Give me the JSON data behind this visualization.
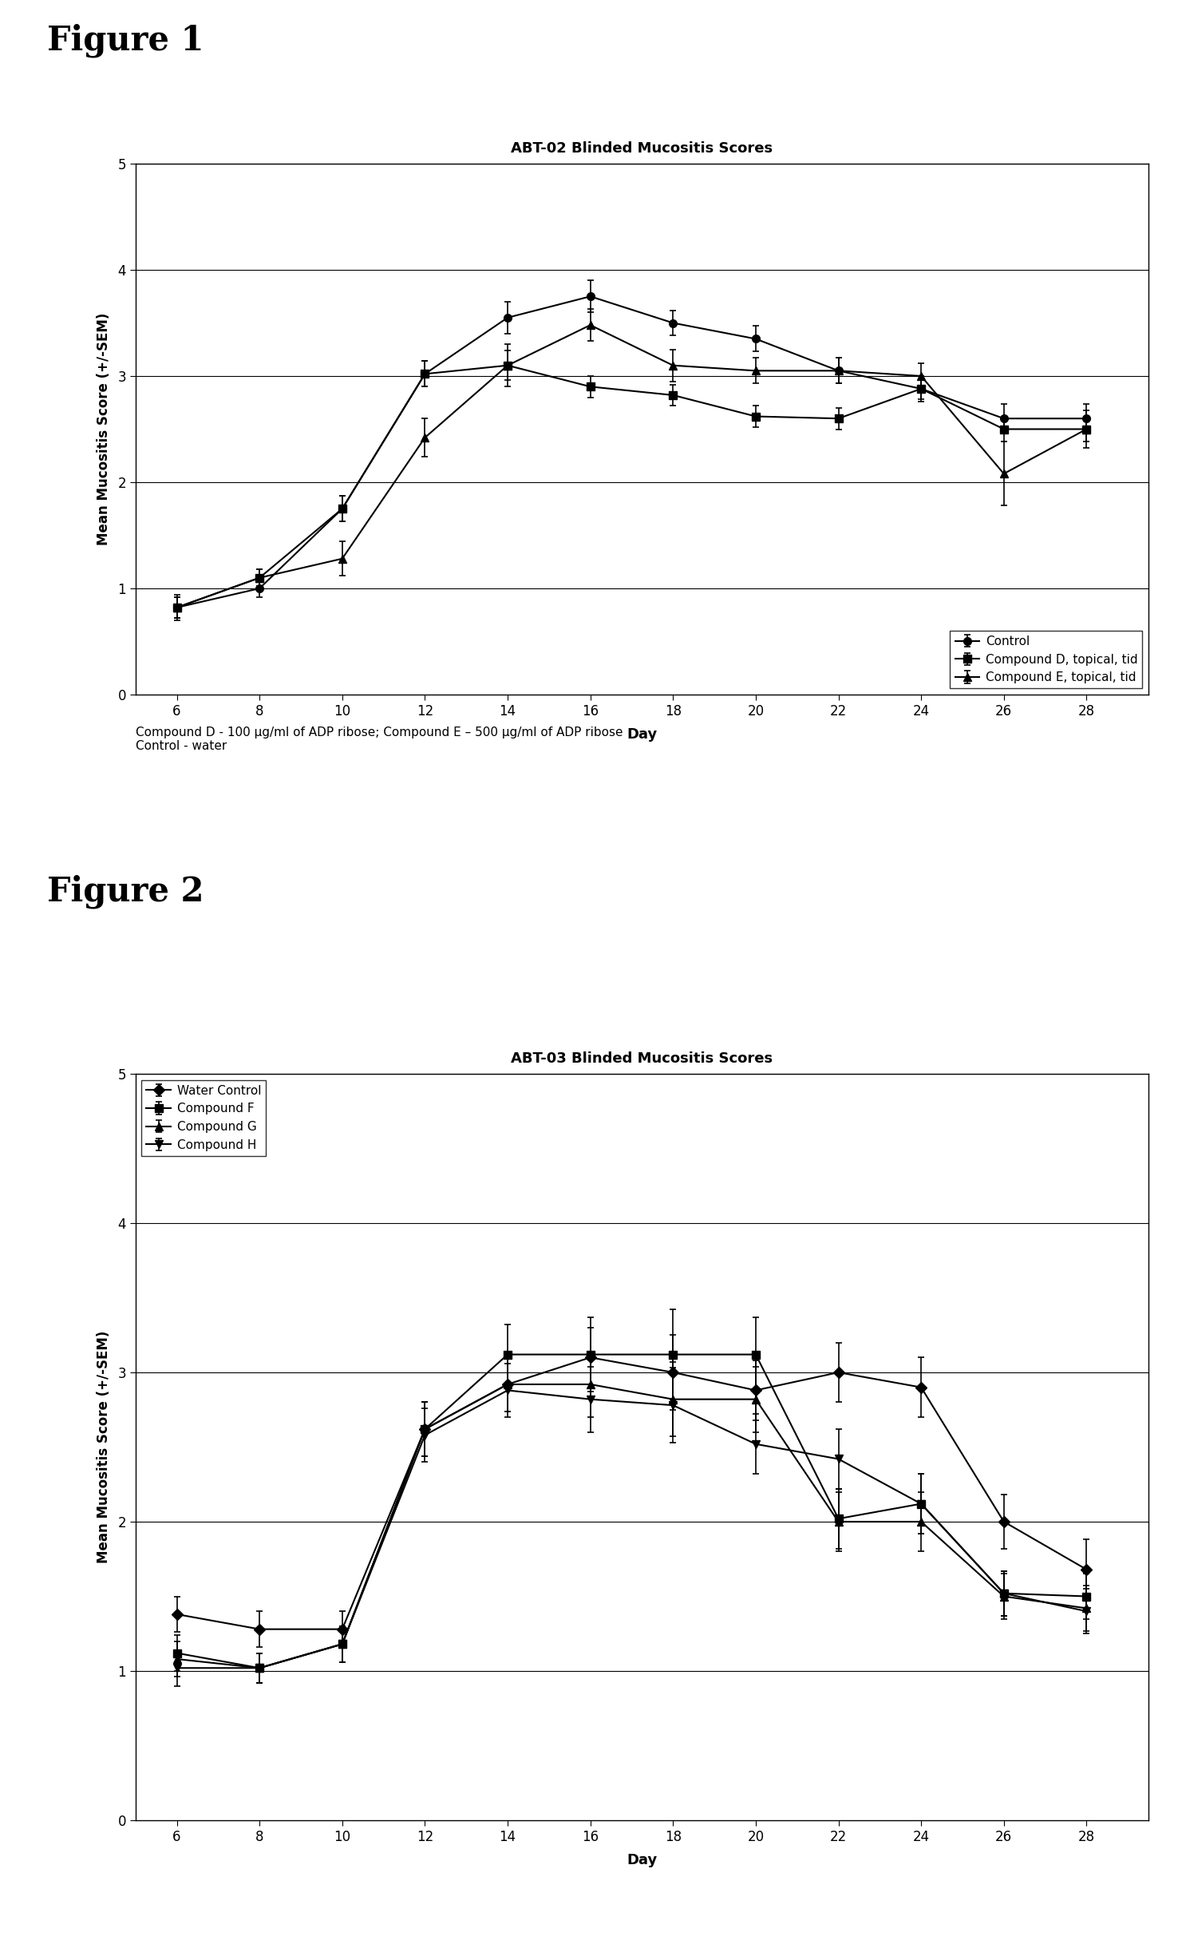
{
  "fig1": {
    "title": "ABT-02 Blinded Mucositis Scores",
    "xlabel": "Day",
    "ylabel": "Mean Mucositis Score (+/-SEM)",
    "xlim": [
      5,
      29.5
    ],
    "ylim": [
      0,
      5
    ],
    "xticks": [
      6,
      8,
      10,
      12,
      14,
      16,
      18,
      20,
      22,
      24,
      26,
      28
    ],
    "yticks": [
      0,
      1,
      2,
      3,
      4,
      5
    ],
    "series": [
      {
        "label": "Control",
        "marker": "o",
        "x": [
          6,
          8,
          10,
          12,
          14,
          16,
          18,
          20,
          22,
          24,
          26,
          28
        ],
        "y": [
          0.82,
          1.0,
          1.75,
          3.02,
          3.55,
          3.75,
          3.5,
          3.35,
          3.05,
          2.88,
          2.6,
          2.6
        ],
        "yerr": [
          0.12,
          0.08,
          0.12,
          0.12,
          0.15,
          0.15,
          0.12,
          0.12,
          0.12,
          0.12,
          0.14,
          0.14
        ]
      },
      {
        "label": "Compound D, topical, tid",
        "marker": "s",
        "x": [
          6,
          8,
          10,
          12,
          14,
          16,
          18,
          20,
          22,
          24,
          26,
          28
        ],
        "y": [
          0.82,
          1.1,
          1.75,
          3.02,
          3.1,
          2.9,
          2.82,
          2.62,
          2.6,
          2.88,
          2.5,
          2.5
        ],
        "yerr": [
          0.1,
          0.08,
          0.12,
          0.12,
          0.14,
          0.1,
          0.1,
          0.1,
          0.1,
          0.1,
          0.12,
          0.12
        ]
      },
      {
        "label": "Compound E, topical, tid",
        "marker": "^",
        "x": [
          6,
          8,
          10,
          12,
          14,
          16,
          18,
          20,
          22,
          24,
          26,
          28
        ],
        "y": [
          0.82,
          1.1,
          1.28,
          2.42,
          3.1,
          3.48,
          3.1,
          3.05,
          3.05,
          3.0,
          2.08,
          2.5
        ],
        "yerr": [
          0.1,
          0.08,
          0.16,
          0.18,
          0.2,
          0.15,
          0.15,
          0.12,
          0.12,
          0.12,
          0.3,
          0.18
        ]
      }
    ],
    "legend_loc": "lower right",
    "caption": "Compound D - 100 μg/ml of ADP ribose; Compound E – 500 μg/ml of ADP ribose\nControl - water"
  },
  "fig2": {
    "title": "ABT-03 Blinded Mucositis Scores",
    "xlabel": "Day",
    "ylabel": "Mean Mucositis Score (+/-SEM)",
    "xlim": [
      5,
      29.5
    ],
    "ylim": [
      0,
      5
    ],
    "xticks": [
      6,
      8,
      10,
      12,
      14,
      16,
      18,
      20,
      22,
      24,
      26,
      28
    ],
    "yticks": [
      0,
      1,
      2,
      3,
      4,
      5
    ],
    "series": [
      {
        "label": "Water Control",
        "marker": "D",
        "x": [
          6,
          8,
          10,
          12,
          14,
          16,
          18,
          20,
          22,
          24,
          26,
          28
        ],
        "y": [
          1.38,
          1.28,
          1.28,
          2.62,
          2.92,
          3.1,
          3.0,
          2.88,
          3.0,
          2.9,
          2.0,
          1.68
        ],
        "yerr": [
          0.12,
          0.12,
          0.12,
          0.18,
          0.18,
          0.2,
          0.25,
          0.2,
          0.2,
          0.2,
          0.18,
          0.2
        ]
      },
      {
        "label": "Compound F",
        "marker": "s",
        "x": [
          6,
          8,
          10,
          12,
          14,
          16,
          18,
          20,
          22,
          24,
          26,
          28
        ],
        "y": [
          1.12,
          1.02,
          1.18,
          2.62,
          3.12,
          3.12,
          3.12,
          3.12,
          2.02,
          2.12,
          1.52,
          1.5
        ],
        "yerr": [
          0.12,
          0.1,
          0.12,
          0.18,
          0.2,
          0.25,
          0.3,
          0.25,
          0.2,
          0.2,
          0.15,
          0.15
        ]
      },
      {
        "label": "Compound G",
        "marker": "^",
        "x": [
          6,
          8,
          10,
          12,
          14,
          16,
          18,
          20,
          22,
          24,
          26,
          28
        ],
        "y": [
          1.08,
          1.02,
          1.18,
          2.62,
          2.92,
          2.92,
          2.82,
          2.82,
          2.0,
          2.0,
          1.5,
          1.42
        ],
        "yerr": [
          0.12,
          0.1,
          0.12,
          0.18,
          0.18,
          0.22,
          0.25,
          0.22,
          0.2,
          0.2,
          0.15,
          0.15
        ]
      },
      {
        "label": "Compound H",
        "marker": "v",
        "x": [
          6,
          8,
          10,
          12,
          14,
          16,
          18,
          20,
          22,
          24,
          26,
          28
        ],
        "y": [
          1.02,
          1.02,
          1.18,
          2.58,
          2.88,
          2.82,
          2.78,
          2.52,
          2.42,
          2.12,
          1.52,
          1.4
        ],
        "yerr": [
          0.12,
          0.1,
          0.12,
          0.18,
          0.18,
          0.22,
          0.25,
          0.2,
          0.2,
          0.2,
          0.15,
          0.15
        ]
      }
    ],
    "legend_loc": "upper left"
  },
  "figure1_label": "Figure 1",
  "figure2_label": "Figure 2",
  "background_color": "#ffffff",
  "line_color": "#000000",
  "markersize": 7,
  "linewidth": 1.5,
  "elinewidth": 1.2,
  "capsize": 3,
  "title_fontsize": 13,
  "label_fontsize": 13,
  "tick_fontsize": 12,
  "legend_fontsize": 11,
  "figure_label_fontsize": 30,
  "caption_fontsize": 11
}
